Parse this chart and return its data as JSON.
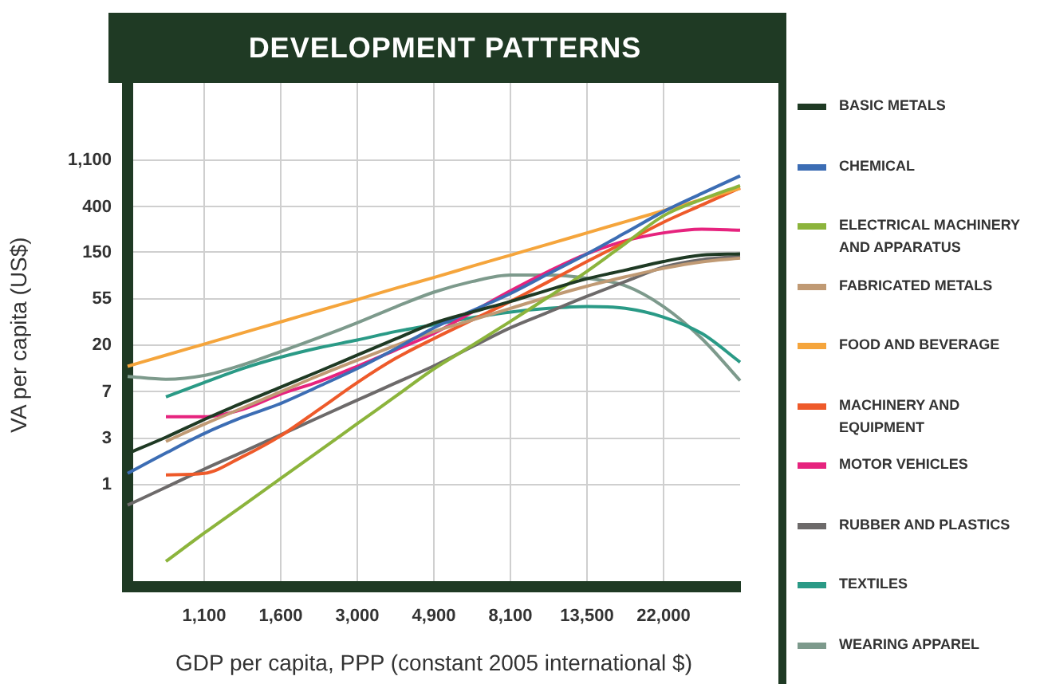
{
  "chart_data": {
    "type": "line",
    "title": "DEVELOPMENT PATTERNS",
    "xlabel": "GDP per capita, PPP (constant 2005 international $)",
    "ylabel": "VA per capita (US$)",
    "categories": [
      null,
      null,
      "1,100",
      null,
      "1,600",
      null,
      "3,000",
      null,
      "4,900",
      null,
      "8,100",
      null,
      "13,500",
      null,
      "22,000",
      null,
      null
    ],
    "log": "y",
    "ylim": [
      0.11,
      5800
    ],
    "yticks": [
      1,
      {
        "value": 2.718,
        "label": "3"
      },
      {
        "value": 7.389,
        "label": "7"
      },
      {
        "value": 20.09,
        "label": "20"
      },
      {
        "value": 54.6,
        "label": "55"
      },
      150,
      400,
      {
        "value": 1100,
        "label": "1,100"
      }
    ],
    "grid": true,
    "legend": "right",
    "marker": "none",
    "line_style": "solid",
    "series": [
      {
        "name": "BASIC METALS",
        "color": "#1f3a24",
        "values": [
          1.95,
          2.77,
          4.06,
          5.81,
          8.17,
          11.5,
          16.3,
          23.1,
          32.5,
          41.3,
          51.9,
          66.7,
          84.8,
          102,
          123,
          141,
          145
        ]
      },
      {
        "name": "CHEMICAL",
        "color": "#3c6db4",
        "values": [
          1.27,
          1.97,
          3.0,
          4.26,
          5.75,
          8.33,
          12.2,
          18.7,
          29.4,
          42.5,
          61.6,
          94.6,
          145,
          228,
          361,
          534,
          780
        ]
      },
      {
        "name": "ELECTRICAL MACHINERY AND APPARATUS",
        "color": "#8cb43c",
        "values": [
          null,
          0.19,
          0.35,
          0.63,
          1.14,
          2.05,
          3.71,
          6.69,
          12.1,
          20.1,
          33.8,
          57.4,
          99.5,
          181,
          330,
          469,
          633
        ]
      },
      {
        "name": "FABRICATED METALS",
        "color": "#c09a74",
        "values": [
          null,
          2.53,
          3.67,
          5.21,
          7.39,
          10.5,
          14.6,
          20.1,
          27.1,
          34.8,
          44.7,
          57.4,
          72.2,
          88.2,
          106,
          122,
          132
        ]
      },
      {
        "name": "FOOD AND BEVERAGE",
        "color": "#f5a53c",
        "values": [
          12.8,
          16.3,
          20.7,
          26.3,
          33.4,
          42.5,
          54,
          69,
          87,
          111,
          141,
          179,
          228,
          290,
          369,
          469,
          596
        ]
      },
      {
        "name": "MACHINERY AND EQUIPMENT",
        "color": "#ee5a2a",
        "values": [
          null,
          1.23,
          1.27,
          1.82,
          2.86,
          5.05,
          9.03,
          15.2,
          23.3,
          34.8,
          51.9,
          79.8,
          123,
          187,
          287,
          416,
          602
        ]
      },
      {
        "name": "MOTOR VEHICLES",
        "color": "#e6237e",
        "values": [
          null,
          4.31,
          4.31,
          5.05,
          7.03,
          9.21,
          12.8,
          18.2,
          26.0,
          41.3,
          65.4,
          99.5,
          145,
          192,
          228,
          247,
          242
        ]
      },
      {
        "name": "RUBBER AND PLASTICS",
        "color": "#6d6a6a",
        "values": [
          0.64,
          0.94,
          1.39,
          2.01,
          2.92,
          4.26,
          6.17,
          8.94,
          12.9,
          19.5,
          29.4,
          41.3,
          58.0,
          79.8,
          109,
          128,
          137
        ]
      },
      {
        "name": "TEXTILES",
        "color": "#2a9a86",
        "values": [
          null,
          6.62,
          9.03,
          12.2,
          15.6,
          19.1,
          22.6,
          27.1,
          31.5,
          36.6,
          41.3,
          44.7,
          46.5,
          44.7,
          37.0,
          26.0,
          14.0
        ]
      },
      {
        "name": "WEARING APPAREL",
        "color": "#7d9a8c",
        "values": [
          10.3,
          9.68,
          10.5,
          13.2,
          17.6,
          23.8,
          32.8,
          46.1,
          63.4,
          79.8,
          91.8,
          91.8,
          85.6,
          73.0,
          46.5,
          23.3,
          9.39
        ]
      }
    ]
  }
}
